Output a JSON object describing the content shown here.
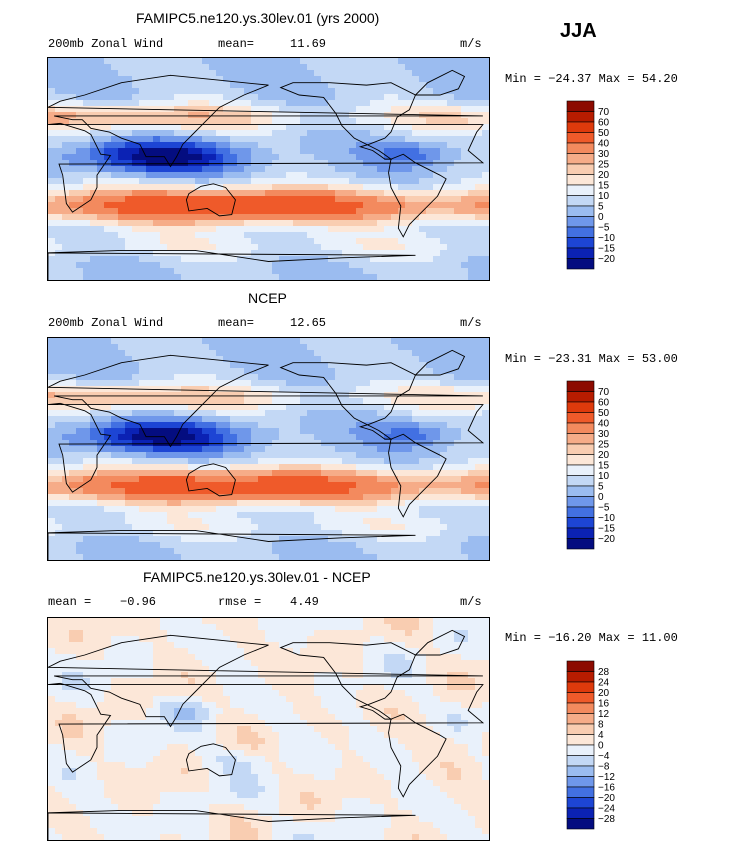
{
  "season": "JJA",
  "units": "m/s",
  "chart_data": [
    {
      "type": "heatmap",
      "title": "FAMIPC5.ne120.ys.30lev.01 (yrs 2000)",
      "left_label": "200mb Zonal Wind",
      "stat1_label": "mean=",
      "stat1_value": "11.69",
      "units": "m/s",
      "minmax": "Min = −24.37 Max =  54.20",
      "min": -24.37,
      "max": 54.2,
      "colorbar_levels": [
        "70",
        "60",
        "50",
        "40",
        "30",
        "25",
        "20",
        "15",
        "10",
        "5",
        "0",
        "−5",
        "−10",
        "−15",
        "−20"
      ],
      "colorbar_colors": [
        "#8c0a00",
        "#b71c00",
        "#de3a0c",
        "#ef5a2a",
        "#f38a5e",
        "#f6ac88",
        "#f9cdb1",
        "#fce7d8",
        "#e9f1fb",
        "#c3d8f5",
        "#9bbcf0",
        "#6f97ea",
        "#4270e2",
        "#1d45d4",
        "#0b22b4",
        "#040d80"
      ]
    },
    {
      "type": "heatmap",
      "title": "NCEP",
      "left_label": "200mb Zonal Wind",
      "stat1_label": "mean=",
      "stat1_value": "12.65",
      "units": "m/s",
      "minmax": "Min = −23.31 Max =  53.00",
      "min": -23.31,
      "max": 53.0,
      "colorbar_levels": [
        "70",
        "60",
        "50",
        "40",
        "30",
        "25",
        "20",
        "15",
        "10",
        "5",
        "0",
        "−5",
        "−10",
        "−15",
        "−20"
      ],
      "colorbar_colors": [
        "#8c0a00",
        "#b71c00",
        "#de3a0c",
        "#ef5a2a",
        "#f38a5e",
        "#f6ac88",
        "#f9cdb1",
        "#fce7d8",
        "#e9f1fb",
        "#c3d8f5",
        "#9bbcf0",
        "#6f97ea",
        "#4270e2",
        "#1d45d4",
        "#0b22b4",
        "#040d80"
      ]
    },
    {
      "type": "heatmap",
      "title": "FAMIPC5.ne120.ys.30lev.01 - NCEP",
      "left_label": "mean =",
      "left_value": "−0.96",
      "stat1_label": "rmse =",
      "stat1_value": "4.49",
      "units": "m/s",
      "minmax": "Min = −16.20 Max =  11.00",
      "min": -16.2,
      "max": 11.0,
      "colorbar_levels": [
        "28",
        "24",
        "20",
        "16",
        "12",
        "8",
        "4",
        "0",
        "−4",
        "−8",
        "−12",
        "−16",
        "−20",
        "−24",
        "−28"
      ],
      "colorbar_colors": [
        "#8c0a00",
        "#b71c00",
        "#de3a0c",
        "#ef5a2a",
        "#f38a5e",
        "#f6ac88",
        "#f9cdb1",
        "#fce7d8",
        "#e9f1fb",
        "#c3d8f5",
        "#9bbcf0",
        "#6f97ea",
        "#4270e2",
        "#1d45d4",
        "#0b22b4",
        "#040d80"
      ]
    }
  ]
}
